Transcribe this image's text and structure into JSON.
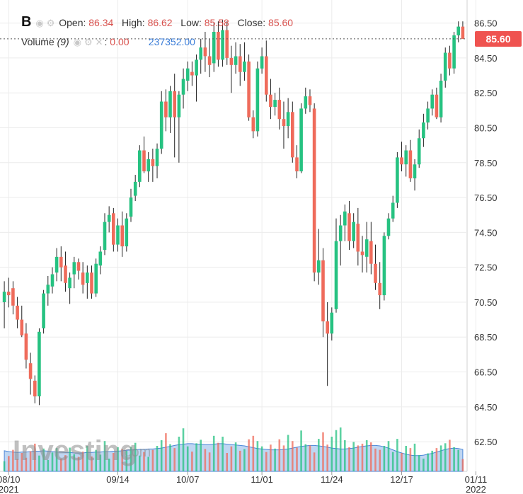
{
  "header": {
    "symbol": "B",
    "open_label": "Open:",
    "open": "86.34",
    "high_label": "High:",
    "high": "86.62",
    "low_label": "Low:",
    "low": "85.58",
    "close_label": "Close:",
    "close": "85.60",
    "volume_label": "Volume",
    "volume_period": "(9)",
    "volume_value": "0.00",
    "volume_ma": "237352.00"
  },
  "current_price_tag": "85.60",
  "watermark": "Investing.com",
  "colors": {
    "up": "#26c281",
    "down": "#ef6b5b",
    "volume_area": "#aac8ee",
    "price_tag": "#ef5350"
  },
  "chart_data": {
    "type": "candlestick",
    "y_ticks": [
      "86.50",
      "84.50",
      "82.50",
      "80.50",
      "78.50",
      "76.50",
      "74.50",
      "72.50",
      "70.50",
      "68.50",
      "66.50",
      "64.50",
      "62.50"
    ],
    "ylim": [
      60.8,
      87.5
    ],
    "x_ticks": [
      {
        "date_label": "08/10",
        "year_label": "2021",
        "index": 1
      },
      {
        "date_label": "09/14",
        "year_label": "",
        "index": 26
      },
      {
        "date_label": "10/07",
        "year_label": "",
        "index": 42
      },
      {
        "date_label": "11/01",
        "year_label": "",
        "index": 59
      },
      {
        "date_label": "11/24",
        "year_label": "",
        "index": 75
      },
      {
        "date_label": "12/17",
        "year_label": "",
        "index": 91
      },
      {
        "date_label": "01/11",
        "year_label": "2022",
        "index": 108
      }
    ],
    "last_close": 85.6,
    "candles": [
      [
        70.5,
        71.7,
        69.0,
        71.1
      ],
      [
        71.1,
        71.9,
        70.2,
        70.9
      ],
      [
        71.3,
        71.7,
        69.8,
        70.3
      ],
      [
        70.3,
        70.8,
        69.0,
        69.5
      ],
      [
        69.5,
        70.3,
        68.5,
        68.6
      ],
      [
        68.7,
        69.3,
        66.7,
        67.2
      ],
      [
        67.0,
        67.6,
        65.2,
        66.1
      ],
      [
        66.0,
        66.3,
        64.7,
        65.1
      ],
      [
        65.1,
        69.0,
        64.6,
        68.8
      ],
      [
        69.0,
        71.2,
        68.7,
        71.0
      ],
      [
        71.0,
        72.0,
        70.3,
        71.5
      ],
      [
        71.4,
        72.5,
        71.0,
        72.1
      ],
      [
        72.2,
        73.6,
        71.7,
        73.1
      ],
      [
        73.1,
        73.7,
        71.7,
        72.5
      ],
      [
        72.6,
        73.4,
        71.1,
        71.6
      ],
      [
        71.3,
        72.2,
        70.4,
        71.9
      ],
      [
        72.1,
        73.1,
        71.3,
        72.8
      ],
      [
        72.8,
        73.0,
        71.8,
        72.3
      ],
      [
        72.2,
        72.8,
        71.0,
        71.5
      ],
      [
        71.6,
        72.6,
        70.7,
        72.2
      ],
      [
        72.2,
        72.6,
        70.7,
        71.0
      ],
      [
        71.0,
        73.0,
        70.8,
        72.7
      ],
      [
        72.6,
        73.7,
        72.1,
        73.4
      ],
      [
        73.5,
        75.6,
        73.2,
        75.1
      ],
      [
        75.1,
        76.0,
        74.5,
        75.5
      ],
      [
        75.6,
        75.9,
        73.4,
        73.8
      ],
      [
        73.8,
        75.3,
        73.4,
        74.9
      ],
      [
        74.9,
        75.7,
        73.1,
        73.7
      ],
      [
        73.7,
        75.6,
        73.4,
        75.3
      ],
      [
        75.4,
        77.0,
        75.1,
        76.5
      ],
      [
        76.6,
        77.8,
        76.3,
        77.4
      ],
      [
        77.4,
        79.5,
        77.1,
        79.2
      ],
      [
        79.2,
        80.0,
        77.9,
        78.0
      ],
      [
        78.0,
        79.1,
        77.4,
        78.7
      ],
      [
        78.7,
        79.3,
        77.4,
        78.3
      ],
      [
        78.3,
        79.6,
        77.6,
        79.3
      ],
      [
        79.3,
        82.6,
        79.0,
        82.0
      ],
      [
        82.0,
        82.7,
        80.3,
        81.1
      ],
      [
        81.1,
        82.9,
        80.2,
        82.6
      ],
      [
        82.6,
        83.6,
        78.8,
        81.1
      ],
      [
        81.1,
        82.6,
        78.5,
        82.4
      ],
      [
        82.4,
        83.9,
        81.6,
        83.3
      ],
      [
        83.2,
        84.3,
        82.6,
        83.9
      ],
      [
        83.7,
        84.3,
        82.9,
        83.5
      ],
      [
        83.5,
        84.7,
        82.0,
        84.4
      ],
      [
        84.4,
        85.6,
        83.6,
        85.1
      ],
      [
        85.1,
        86.0,
        83.7,
        84.6
      ],
      [
        84.6,
        85.6,
        83.4,
        84.1
      ],
      [
        84.2,
        86.5,
        83.7,
        86.0
      ],
      [
        86.0,
        86.6,
        84.0,
        84.4
      ],
      [
        84.4,
        86.7,
        84.0,
        86.1
      ],
      [
        86.1,
        86.6,
        84.1,
        84.5
      ],
      [
        84.5,
        85.2,
        82.5,
        84.1
      ],
      [
        84.1,
        85.4,
        83.6,
        84.6
      ],
      [
        84.6,
        85.3,
        82.9,
        83.7
      ],
      [
        83.7,
        85.4,
        83.2,
        84.3
      ],
      [
        84.3,
        84.7,
        80.9,
        81.1
      ],
      [
        81.1,
        81.5,
        79.9,
        80.3
      ],
      [
        80.3,
        84.3,
        80.0,
        83.9
      ],
      [
        83.9,
        85.1,
        83.6,
        84.6
      ],
      [
        84.6,
        85.5,
        82.0,
        82.4
      ],
      [
        82.4,
        83.3,
        81.0,
        81.7
      ],
      [
        81.7,
        82.5,
        81.2,
        82.1
      ],
      [
        82.1,
        82.8,
        80.4,
        81.0
      ],
      [
        81.0,
        82.0,
        79.3,
        80.6
      ],
      [
        80.6,
        82.2,
        79.9,
        81.4
      ],
      [
        81.4,
        82.0,
        78.5,
        78.8
      ],
      [
        78.8,
        79.5,
        77.6,
        78.0
      ],
      [
        78.0,
        81.9,
        77.9,
        81.6
      ],
      [
        81.6,
        82.8,
        81.3,
        82.3
      ],
      [
        82.3,
        82.7,
        81.4,
        81.8
      ],
      [
        81.6,
        81.9,
        71.7,
        72.2
      ],
      [
        72.2,
        74.7,
        71.5,
        72.9
      ],
      [
        72.9,
        73.6,
        68.5,
        69.4
      ],
      [
        69.4,
        70.5,
        65.7,
        68.7
      ],
      [
        68.7,
        70.2,
        68.3,
        69.9
      ],
      [
        70.1,
        75.3,
        69.9,
        74.0
      ],
      [
        74.0,
        75.5,
        72.6,
        74.9
      ],
      [
        74.9,
        76.1,
        74.0,
        75.7
      ],
      [
        75.6,
        76.3,
        73.5,
        74.0
      ],
      [
        74.0,
        75.6,
        73.6,
        75.1
      ],
      [
        75.0,
        75.9,
        72.6,
        73.4
      ],
      [
        73.4,
        74.3,
        72.2,
        73.2
      ],
      [
        73.1,
        75.1,
        72.2,
        74.1
      ],
      [
        74.0,
        75.1,
        72.1,
        72.7
      ],
      [
        72.7,
        73.8,
        71.2,
        71.6
      ],
      [
        71.6,
        72.8,
        70.1,
        70.9
      ],
      [
        70.9,
        74.5,
        70.6,
        74.3
      ],
      [
        74.3,
        75.6,
        74.1,
        75.3
      ],
      [
        75.3,
        76.6,
        75.1,
        76.2
      ],
      [
        76.2,
        79.1,
        75.9,
        78.8
      ],
      [
        78.8,
        79.7,
        78.0,
        78.4
      ],
      [
        78.4,
        79.5,
        77.7,
        79.2
      ],
      [
        79.2,
        79.8,
        77.4,
        77.6
      ],
      [
        77.6,
        78.7,
        76.9,
        78.4
      ],
      [
        78.4,
        80.4,
        78.2,
        79.9
      ],
      [
        79.9,
        81.3,
        79.4,
        80.8
      ],
      [
        80.8,
        82.0,
        80.4,
        81.6
      ],
      [
        81.6,
        82.7,
        81.2,
        82.4
      ],
      [
        82.4,
        82.8,
        81.0,
        81.1
      ],
      [
        81.1,
        83.6,
        80.8,
        83.2
      ],
      [
        83.2,
        85.1,
        82.8,
        84.8
      ],
      [
        84.8,
        85.2,
        83.5,
        83.9
      ],
      [
        83.9,
        86.0,
        83.6,
        85.8
      ],
      [
        85.8,
        86.6,
        85.4,
        86.3
      ],
      [
        86.3,
        86.6,
        85.6,
        85.6
      ]
    ],
    "volume": [
      0.23,
      0.35,
      0.49,
      0.28,
      0.42,
      0.31,
      0.46,
      0.63,
      0.36,
      0.52,
      0.26,
      0.43,
      0.53,
      0.29,
      0.37,
      0.54,
      0.39,
      0.33,
      0.45,
      0.58,
      0.34,
      0.49,
      0.38,
      0.69,
      0.29,
      0.42,
      0.55,
      0.51,
      0.47,
      0.56,
      0.65,
      0.36,
      0.44,
      0.33,
      0.49,
      0.58,
      0.71,
      0.87,
      0.62,
      0.53,
      0.79,
      0.98,
      0.57,
      0.45,
      0.64,
      0.72,
      0.51,
      0.43,
      0.81,
      0.65,
      0.79,
      0.42,
      0.57,
      0.66,
      0.47,
      0.51,
      0.73,
      0.81,
      0.69,
      0.57,
      0.44,
      0.61,
      0.52,
      0.73,
      0.59,
      0.83,
      0.69,
      0.54,
      0.93,
      0.62,
      0.59,
      0.43,
      0.74,
      0.89,
      0.61,
      0.79,
      0.94,
      1.0,
      0.71,
      0.55,
      0.67,
      0.59,
      0.63,
      0.71,
      0.66,
      0.52,
      0.49,
      0.58,
      0.69,
      0.44,
      0.74,
      0.42,
      0.58,
      0.53,
      0.63,
      0.37,
      0.29,
      0.41,
      0.47,
      0.53,
      0.59,
      0.64,
      0.72,
      0.55,
      0.49,
      0.28
    ],
    "volume_ma": [
      0.47,
      0.45,
      0.44,
      0.43,
      0.44,
      0.44,
      0.45,
      0.46,
      0.46,
      0.47,
      0.46,
      0.45,
      0.44,
      0.44,
      0.43,
      0.43,
      0.42,
      0.42,
      0.42,
      0.43,
      0.43,
      0.44,
      0.44,
      0.45,
      0.45,
      0.46,
      0.46,
      0.47,
      0.48,
      0.49,
      0.49,
      0.5,
      0.5,
      0.51,
      0.51,
      0.52,
      0.53,
      0.55,
      0.57,
      0.59,
      0.61,
      0.62,
      0.63,
      0.63,
      0.62,
      0.62,
      0.61,
      0.61,
      0.62,
      0.63,
      0.63,
      0.62,
      0.61,
      0.6,
      0.59,
      0.58,
      0.56,
      0.54,
      0.52,
      0.51,
      0.5,
      0.49,
      0.49,
      0.49,
      0.5,
      0.51,
      0.53,
      0.55,
      0.57,
      0.58,
      0.59,
      0.59,
      0.58,
      0.57,
      0.55,
      0.53,
      0.52,
      0.51,
      0.51,
      0.52,
      0.53,
      0.55,
      0.57,
      0.58,
      0.59,
      0.59,
      0.58,
      0.56,
      0.53,
      0.49,
      0.45,
      0.42,
      0.39,
      0.37,
      0.36,
      0.36,
      0.37,
      0.39,
      0.41,
      0.44,
      0.47,
      0.5,
      0.52,
      0.53,
      0.52,
      0.5
    ]
  }
}
